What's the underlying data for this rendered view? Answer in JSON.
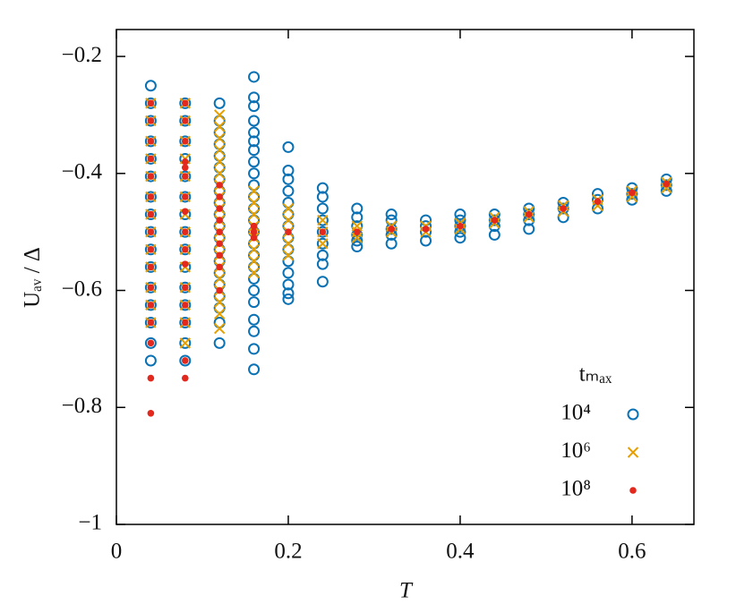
{
  "chart_data": {
    "type": "scatter",
    "x_label": "T",
    "y_label": "Uₐᵥ / Δ",
    "legend_title": "tₘₐₓ",
    "legend": "lower right",
    "xlim": [
      0,
      0.672
    ],
    "ylim": [
      -1,
      -0.154
    ],
    "xticks": [
      {
        "value": 0,
        "label": "0"
      },
      0.2,
      0.4,
      0.6
    ],
    "yticks": [
      {
        "value": -1,
        "label": "−1"
      },
      {
        "value": -0.8,
        "label": "−0.8"
      },
      {
        "value": -0.6,
        "label": "−0.6"
      },
      {
        "value": -0.4,
        "label": "−0.4"
      },
      {
        "value": -0.2,
        "label": "−0.2"
      }
    ],
    "series": [
      {
        "name": "10⁴",
        "color": "#0a72b4",
        "marker": "open-circle",
        "x": [
          0.04,
          0.04,
          0.04,
          0.04,
          0.04,
          0.04,
          0.04,
          0.04,
          0.04,
          0.04,
          0.04,
          0.04,
          0.04,
          0.04,
          0.04,
          0.04,
          0.08,
          0.08,
          0.08,
          0.08,
          0.08,
          0.08,
          0.08,
          0.08,
          0.08,
          0.08,
          0.08,
          0.08,
          0.08,
          0.08,
          0.08,
          0.12,
          0.12,
          0.12,
          0.12,
          0.12,
          0.12,
          0.12,
          0.12,
          0.12,
          0.12,
          0.12,
          0.12,
          0.12,
          0.12,
          0.12,
          0.12,
          0.12,
          0.12,
          0.12,
          0.12,
          0.16,
          0.16,
          0.16,
          0.16,
          0.16,
          0.16,
          0.16,
          0.16,
          0.16,
          0.16,
          0.16,
          0.16,
          0.16,
          0.16,
          0.16,
          0.16,
          0.16,
          0.16,
          0.16,
          0.16,
          0.16,
          0.16,
          0.16,
          0.16,
          0.2,
          0.2,
          0.2,
          0.2,
          0.2,
          0.2,
          0.2,
          0.2,
          0.2,
          0.2,
          0.2,
          0.2,
          0.2,
          0.2,
          0.24,
          0.24,
          0.24,
          0.24,
          0.24,
          0.24,
          0.24,
          0.24,
          0.24,
          0.28,
          0.28,
          0.28,
          0.28,
          0.28,
          0.28,
          0.32,
          0.32,
          0.32,
          0.32,
          0.32,
          0.36,
          0.36,
          0.36,
          0.36,
          0.4,
          0.4,
          0.4,
          0.4,
          0.4,
          0.44,
          0.44,
          0.44,
          0.44,
          0.48,
          0.48,
          0.48,
          0.48,
          0.52,
          0.52,
          0.52,
          0.56,
          0.56,
          0.56,
          0.6,
          0.6,
          0.6,
          0.64,
          0.64,
          0.64
        ],
        "values": [
          -0.25,
          -0.28,
          -0.31,
          -0.345,
          -0.375,
          -0.405,
          -0.44,
          -0.47,
          -0.5,
          -0.53,
          -0.56,
          -0.595,
          -0.625,
          -0.655,
          -0.69,
          -0.72,
          -0.28,
          -0.31,
          -0.345,
          -0.375,
          -0.405,
          -0.44,
          -0.47,
          -0.5,
          -0.53,
          -0.56,
          -0.595,
          -0.625,
          -0.655,
          -0.69,
          -0.72,
          -0.28,
          -0.31,
          -0.33,
          -0.35,
          -0.37,
          -0.39,
          -0.41,
          -0.43,
          -0.45,
          -0.47,
          -0.49,
          -0.51,
          -0.53,
          -0.55,
          -0.57,
          -0.59,
          -0.61,
          -0.63,
          -0.655,
          -0.69,
          -0.235,
          -0.27,
          -0.285,
          -0.31,
          -0.33,
          -0.345,
          -0.36,
          -0.38,
          -0.4,
          -0.42,
          -0.44,
          -0.46,
          -0.48,
          -0.5,
          -0.52,
          -0.54,
          -0.56,
          -0.58,
          -0.6,
          -0.62,
          -0.65,
          -0.67,
          -0.7,
          -0.735,
          -0.355,
          -0.395,
          -0.41,
          -0.43,
          -0.45,
          -0.47,
          -0.49,
          -0.51,
          -0.53,
          -0.55,
          -0.57,
          -0.59,
          -0.605,
          -0.615,
          -0.425,
          -0.44,
          -0.46,
          -0.48,
          -0.5,
          -0.52,
          -0.54,
          -0.555,
          -0.585,
          -0.46,
          -0.475,
          -0.49,
          -0.505,
          -0.515,
          -0.525,
          -0.47,
          -0.48,
          -0.495,
          -0.505,
          -0.52,
          -0.48,
          -0.49,
          -0.5,
          -0.515,
          -0.47,
          -0.48,
          -0.49,
          -0.5,
          -0.51,
          -0.47,
          -0.48,
          -0.49,
          -0.505,
          -0.46,
          -0.47,
          -0.48,
          -0.495,
          -0.45,
          -0.46,
          -0.475,
          -0.435,
          -0.445,
          -0.46,
          -0.425,
          -0.435,
          -0.445,
          -0.41,
          -0.42,
          -0.43
        ]
      },
      {
        "name": "10⁶",
        "color": "#e69f00",
        "marker": "cross",
        "x": [
          0.04,
          0.04,
          0.04,
          0.04,
          0.04,
          0.04,
          0.04,
          0.04,
          0.04,
          0.04,
          0.04,
          0.04,
          0.04,
          0.08,
          0.08,
          0.08,
          0.08,
          0.08,
          0.08,
          0.08,
          0.08,
          0.08,
          0.08,
          0.08,
          0.08,
          0.08,
          0.08,
          0.12,
          0.12,
          0.12,
          0.12,
          0.12,
          0.12,
          0.12,
          0.12,
          0.12,
          0.12,
          0.12,
          0.12,
          0.12,
          0.12,
          0.12,
          0.12,
          0.12,
          0.12,
          0.12,
          0.16,
          0.16,
          0.16,
          0.16,
          0.16,
          0.16,
          0.16,
          0.16,
          0.2,
          0.2,
          0.2,
          0.2,
          0.2,
          0.24,
          0.24,
          0.24,
          0.28,
          0.28,
          0.28,
          0.32,
          0.32,
          0.36,
          0.36,
          0.4,
          0.4,
          0.44,
          0.44,
          0.48,
          0.48,
          0.52,
          0.52,
          0.56,
          0.56,
          0.6,
          0.6,
          0.64,
          0.64
        ],
        "values": [
          -0.28,
          -0.31,
          -0.345,
          -0.375,
          -0.405,
          -0.44,
          -0.47,
          -0.5,
          -0.53,
          -0.56,
          -0.595,
          -0.625,
          -0.655,
          -0.28,
          -0.31,
          -0.345,
          -0.375,
          -0.405,
          -0.44,
          -0.47,
          -0.5,
          -0.53,
          -0.56,
          -0.595,
          -0.625,
          -0.655,
          -0.69,
          -0.3,
          -0.32,
          -0.34,
          -0.36,
          -0.38,
          -0.4,
          -0.42,
          -0.44,
          -0.46,
          -0.48,
          -0.5,
          -0.52,
          -0.54,
          -0.56,
          -0.58,
          -0.6,
          -0.62,
          -0.64,
          -0.665,
          -0.43,
          -0.45,
          -0.47,
          -0.49,
          -0.51,
          -0.53,
          -0.55,
          -0.57,
          -0.46,
          -0.48,
          -0.5,
          -0.52,
          -0.54,
          -0.48,
          -0.5,
          -0.52,
          -0.49,
          -0.5,
          -0.51,
          -0.49,
          -0.5,
          -0.49,
          -0.5,
          -0.485,
          -0.495,
          -0.475,
          -0.485,
          -0.465,
          -0.475,
          -0.455,
          -0.465,
          -0.445,
          -0.455,
          -0.43,
          -0.44,
          -0.415,
          -0.425
        ]
      },
      {
        "name": "10⁸",
        "color": "#e3281e",
        "marker": "dot",
        "x": [
          0.04,
          0.04,
          0.04,
          0.04,
          0.04,
          0.04,
          0.04,
          0.04,
          0.04,
          0.04,
          0.04,
          0.04,
          0.04,
          0.04,
          0.04,
          0.04,
          0.08,
          0.08,
          0.08,
          0.08,
          0.08,
          0.08,
          0.08,
          0.08,
          0.08,
          0.08,
          0.08,
          0.08,
          0.08,
          0.08,
          0.08,
          0.08,
          0.12,
          0.12,
          0.12,
          0.12,
          0.12,
          0.12,
          0.12,
          0.12,
          0.12,
          0.16,
          0.16,
          0.16,
          0.2,
          0.24,
          0.28,
          0.32,
          0.36,
          0.4,
          0.44,
          0.48,
          0.52,
          0.56,
          0.6,
          0.64
        ],
        "values": [
          -0.28,
          -0.31,
          -0.345,
          -0.375,
          -0.405,
          -0.44,
          -0.47,
          -0.5,
          -0.53,
          -0.56,
          -0.595,
          -0.625,
          -0.655,
          -0.69,
          -0.75,
          -0.81,
          -0.28,
          -0.31,
          -0.345,
          -0.38,
          -0.39,
          -0.405,
          -0.44,
          -0.465,
          -0.5,
          -0.53,
          -0.555,
          -0.595,
          -0.625,
          -0.655,
          -0.72,
          -0.75,
          -0.42,
          -0.44,
          -0.46,
          -0.48,
          -0.5,
          -0.52,
          -0.54,
          -0.56,
          -0.6,
          -0.49,
          -0.5,
          -0.51,
          -0.5,
          -0.5,
          -0.5,
          -0.495,
          -0.495,
          -0.49,
          -0.48,
          -0.47,
          -0.46,
          -0.448,
          -0.433,
          -0.418
        ]
      }
    ]
  }
}
